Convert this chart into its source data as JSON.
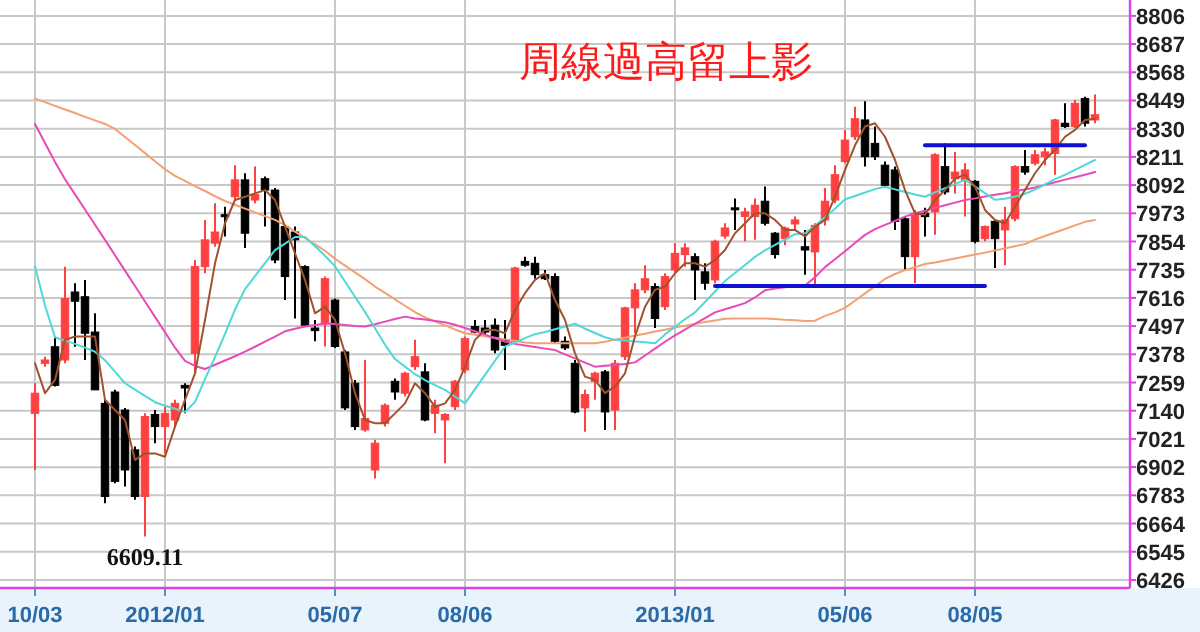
{
  "chart_data": {
    "type": "candlestick",
    "title": "周線過高留上影",
    "categories": [
      "10/03",
      null,
      null,
      null,
      null,
      null,
      null,
      null,
      null,
      null,
      null,
      null,
      null,
      "2012/01",
      null,
      null,
      null,
      null,
      null,
      null,
      null,
      null,
      null,
      null,
      null,
      null,
      null,
      null,
      null,
      null,
      "05/07",
      null,
      null,
      null,
      null,
      null,
      null,
      null,
      null,
      null,
      null,
      null,
      null,
      "08/06",
      null,
      null,
      null,
      null,
      null,
      null,
      null,
      null,
      null,
      null,
      null,
      null,
      null,
      null,
      null,
      null,
      null,
      null,
      null,
      null,
      "2013/01",
      null,
      null,
      null,
      null,
      null,
      null,
      null,
      null,
      null,
      null,
      null,
      null,
      null,
      null,
      null,
      null,
      "05/06",
      null,
      null,
      null,
      null,
      null,
      null,
      null,
      null,
      null,
      null,
      null,
      null,
      "08/05",
      null,
      null,
      null,
      null,
      null,
      null,
      null,
      null,
      null,
      null,
      null,
      null
    ],
    "ohlc": [
      [
        7129,
        7256,
        6890,
        7214
      ],
      [
        7340,
        7368,
        7326,
        7354
      ],
      [
        7410,
        7453,
        7242,
        7247
      ],
      [
        7354,
        7748,
        7340,
        7613
      ],
      [
        7641,
        7678,
        7410,
        7602
      ],
      [
        7621,
        7692,
        7354,
        7467
      ],
      [
        7472,
        7551,
        7228,
        7228
      ],
      [
        7171,
        7186,
        6750,
        6778
      ],
      [
        7219,
        7228,
        6834,
        6842
      ],
      [
        7143,
        7152,
        6820,
        6890
      ],
      [
        6975,
        6989,
        6764,
        6778
      ],
      [
        6778,
        7129,
        6609.11,
        7115
      ],
      [
        7124,
        7143,
        7003,
        7073
      ],
      [
        7073,
        7157,
        6960,
        7129
      ],
      [
        7101,
        7186,
        7073,
        7171
      ],
      [
        7247,
        7256,
        7129,
        7236
      ],
      [
        7382,
        7776,
        7298,
        7748
      ],
      [
        7748,
        7945,
        7720,
        7861
      ],
      [
        7847,
        8015,
        7832,
        7894
      ],
      [
        7967,
        8001,
        7875,
        7959
      ],
      [
        8043,
        8176,
        8029,
        8114
      ],
      [
        8114,
        8142,
        7827,
        7889
      ],
      [
        8029,
        8170,
        8015,
        8052
      ],
      [
        8119,
        8128,
        7917,
        8071
      ],
      [
        8071,
        8080,
        7762,
        7776
      ],
      [
        7917,
        7922,
        7607,
        7706
      ],
      [
        7894,
        7917,
        7529,
        7861
      ],
      [
        7748,
        7754,
        7495,
        7501
      ],
      [
        7489,
        7523,
        7433,
        7478
      ],
      [
        7509,
        7706,
        7411,
        7697
      ],
      [
        7607,
        7613,
        7405,
        7411
      ],
      [
        7388,
        7396,
        7143,
        7152
      ],
      [
        7256,
        7270,
        7059,
        7073
      ],
      [
        7059,
        7354,
        7051,
        7107
      ],
      [
        6890,
        7017,
        6854,
        7003
      ],
      [
        7087,
        7171,
        7073,
        7163
      ],
      [
        7264,
        7276,
        7186,
        7219
      ],
      [
        7214,
        7304,
        7200,
        7298
      ],
      [
        7326,
        7439,
        7312,
        7368
      ],
      [
        7304,
        7340,
        7096,
        7101
      ],
      [
        7129,
        7186,
        7045,
        7163
      ],
      [
        7101,
        7129,
        6918,
        7124
      ],
      [
        7157,
        7270,
        7143,
        7264
      ],
      [
        7312,
        7453,
        7298,
        7444
      ],
      [
        7495,
        7523,
        7467,
        7472
      ],
      [
        7489,
        7523,
        7461,
        7472
      ],
      [
        7501,
        7529,
        7382,
        7396
      ],
      [
        7439,
        7523,
        7312,
        7416
      ],
      [
        7433,
        7748,
        7425,
        7742
      ],
      [
        7770,
        7790,
        7748,
        7754
      ],
      [
        7762,
        7790,
        7697,
        7714
      ],
      [
        7714,
        7734,
        7692,
        7697
      ],
      [
        7706,
        7720,
        7425,
        7433
      ],
      [
        7433,
        7453,
        7396,
        7405
      ],
      [
        7340,
        7354,
        7129,
        7135
      ],
      [
        7152,
        7228,
        7051,
        7208
      ],
      [
        7264,
        7304,
        7186,
        7298
      ],
      [
        7304,
        7312,
        7059,
        7135
      ],
      [
        7143,
        7354,
        7059,
        7340
      ],
      [
        7368,
        7579,
        7354,
        7574
      ],
      [
        7574,
        7678,
        7467,
        7650
      ],
      [
        7650,
        7754,
        7636,
        7697
      ],
      [
        7664,
        7678,
        7489,
        7529
      ],
      [
        7579,
        7720,
        7565,
        7706
      ],
      [
        7734,
        7847,
        7720,
        7804
      ],
      [
        7799,
        7847,
        7748,
        7827
      ],
      [
        7790,
        7804,
        7607,
        7734
      ],
      [
        7726,
        7762,
        7650,
        7678
      ],
      [
        7692,
        7861,
        7678,
        7855
      ],
      [
        7877,
        7931,
        7866,
        7911
      ],
      [
        7996,
        8035,
        7903,
        7990
      ],
      [
        7959,
        7996,
        7855,
        7979
      ],
      [
        7959,
        8035,
        7861,
        8007
      ],
      [
        8024,
        8086,
        7922,
        7931
      ],
      [
        7889,
        7894,
        7782,
        7799
      ],
      [
        7866,
        7917,
        7838,
        7911
      ],
      [
        7928,
        7959,
        7903,
        7945
      ],
      [
        7832,
        7903,
        7714,
        7818
      ],
      [
        7810,
        7931,
        7669,
        7922
      ],
      [
        7945,
        8080,
        7922,
        8024
      ],
      [
        8029,
        8176,
        8015,
        8136
      ],
      [
        8192,
        8325,
        8184,
        8282
      ],
      [
        8296,
        8423,
        8282,
        8372
      ],
      [
        8367,
        8446,
        8170,
        8212
      ],
      [
        8268,
        8339,
        8198,
        8212
      ],
      [
        8176,
        8192,
        8080,
        8091
      ],
      [
        8156,
        8170,
        7903,
        7939
      ],
      [
        7950,
        7959,
        7734,
        7790
      ],
      [
        7790,
        7987,
        7678,
        7973
      ],
      [
        7973,
        7996,
        7875,
        7959
      ],
      [
        7979,
        8226,
        7883,
        8220
      ],
      [
        8170,
        8268,
        8052,
        8063
      ],
      [
        8119,
        8232,
        8057,
        8147
      ],
      [
        8114,
        8184,
        7959,
        8156
      ],
      [
        8108,
        8114,
        7847,
        7855
      ],
      [
        7866,
        7922,
        7855,
        7917
      ],
      [
        7939,
        7945,
        7742,
        7866
      ],
      [
        7903,
        8001,
        7754,
        7945
      ],
      [
        7950,
        8176,
        7939,
        8170
      ],
      [
        8170,
        8240,
        8136,
        8147
      ],
      [
        8184,
        8240,
        8176,
        8220
      ],
      [
        8212,
        8249,
        8176,
        8232
      ],
      [
        8226,
        8372,
        8136,
        8367
      ],
      [
        8353,
        8437,
        8333,
        8339
      ],
      [
        8339,
        8451,
        8333,
        8437
      ],
      [
        8457,
        8465,
        8339,
        8353
      ],
      [
        8367,
        8474,
        8353,
        8389
      ]
    ],
    "colors": [
      "#ff4040",
      "#ff4040",
      "#000000",
      "#ff4040",
      "#000000",
      "#000000",
      "#000000",
      "#000000",
      "#000000",
      "#000000",
      "#000000",
      "#ff4040",
      "#000000",
      "#ff4040",
      "#ff4040",
      "#000000",
      "#ff4040",
      "#ff4040",
      "#ff4040",
      "#000000",
      "#ff4040",
      "#000000",
      "#ff4040",
      "#000000",
      "#000000",
      "#000000",
      "#000000",
      "#000000",
      "#000000",
      "#ff4040",
      "#000000",
      "#000000",
      "#000000",
      "#ff4040",
      "#ff4040",
      "#ff4040",
      "#000000",
      "#ff4040",
      "#ff4040",
      "#000000",
      "#ff4040",
      "#ff4040",
      "#ff4040",
      "#ff4040",
      "#000000",
      "#000000",
      "#000000",
      "#000000",
      "#ff4040",
      "#000000",
      "#000000",
      "#000000",
      "#000000",
      "#000000",
      "#000000",
      "#ff4040",
      "#ff4040",
      "#000000",
      "#ff4040",
      "#ff4040",
      "#ff4040",
      "#ff4040",
      "#000000",
      "#ff4040",
      "#ff4040",
      "#ff4040",
      "#000000",
      "#000000",
      "#ff4040",
      "#ff4040",
      "#000000",
      "#ff4040",
      "#ff4040",
      "#000000",
      "#000000",
      "#ff4040",
      "#ff4040",
      "#000000",
      "#ff4040",
      "#ff4040",
      "#ff4040",
      "#ff4040",
      "#ff4040",
      "#000000",
      "#000000",
      "#000000",
      "#000000",
      "#000000",
      "#ff4040",
      "#000000",
      "#ff4040",
      "#000000",
      "#ff4040",
      "#ff4040",
      "#000000",
      "#ff4040",
      "#000000",
      "#ff4040",
      "#ff4040",
      "#000000",
      "#ff4040",
      "#ff4040",
      "#ff4040",
      "#000000",
      "#ff4040",
      "#000000",
      "#ff4040"
    ],
    "series": [
      {
        "type": "line",
        "color": "#f4a070",
        "values": [
          8457,
          8442,
          8426,
          8411,
          8396,
          8380,
          8365,
          8350,
          8329,
          8295,
          8261,
          8227,
          8193,
          8159,
          8131,
          8110,
          8088,
          8067,
          8045,
          8025,
          8009,
          7993,
          7977,
          7961,
          7945,
          7923,
          7896,
          7869,
          7842,
          7815,
          7781,
          7752,
          7724,
          7695,
          7664,
          7637,
          7610,
          7583,
          7556,
          7534,
          7517,
          7500,
          7483,
          7467,
          7461,
          7454,
          7448,
          7441,
          7435,
          7428,
          7425,
          7425,
          7425,
          7425,
          7425,
          7425,
          7425,
          7431,
          7440,
          7448,
          7457,
          7465,
          7474,
          7482,
          7491,
          7499,
          7506,
          7514,
          7521,
          7528,
          7529,
          7529,
          7529,
          7529,
          7527,
          7524,
          7522,
          7519,
          7520,
          7540,
          7555,
          7574,
          7604,
          7635,
          7665,
          7696,
          7717,
          7733,
          7746,
          7759,
          7765,
          7774,
          7782,
          7791,
          7799,
          7807,
          7816,
          7825,
          7834,
          7843,
          7862,
          7877,
          7892,
          7907,
          7922,
          7937,
          7945
        ]
      },
      {
        "type": "line",
        "color": "#e84ab8",
        "values": [
          8350,
          8270,
          8190,
          8117,
          8053,
          7989,
          7925,
          7861,
          7796,
          7731,
          7666,
          7601,
          7536,
          7471,
          7406,
          7350,
          7329,
          7316,
          7334,
          7352,
          7370,
          7389,
          7410,
          7432,
          7453,
          7475,
          7486,
          7495,
          7502,
          7508,
          7506,
          7502,
          7498,
          7495,
          7505,
          7516,
          7527,
          7537,
          7529,
          7525,
          7519,
          7513,
          7503,
          7489,
          7475,
          7461,
          7446,
          7432,
          7422,
          7415,
          7409,
          7402,
          7396,
          7378,
          7361,
          7343,
          7326,
          7330,
          7333,
          7337,
          7344,
          7373,
          7402,
          7431,
          7458,
          7482,
          7507,
          7531,
          7555,
          7568,
          7581,
          7594,
          7618,
          7648,
          7656,
          7661,
          7665,
          7668,
          7703,
          7746,
          7779,
          7813,
          7848,
          7882,
          7906,
          7924,
          7941,
          7959,
          7973,
          7984,
          7996,
          8007,
          8018,
          8029,
          8036,
          8044,
          8051,
          8058,
          8066,
          8073,
          8082,
          8093,
          8104,
          8115,
          8125,
          8136,
          8147
        ]
      },
      {
        "type": "line",
        "color": "#50d8d8",
        "values": [
          7748,
          7584,
          7450,
          7436,
          7422,
          7406,
          7389,
          7353,
          7305,
          7256,
          7229,
          7203,
          7176,
          7161,
          7148,
          7135,
          7177,
          7273,
          7366,
          7464,
          7567,
          7653,
          7708,
          7763,
          7818,
          7845,
          7873,
          7873,
          7834,
          7794,
          7749,
          7685,
          7621,
          7557,
          7488,
          7418,
          7358,
          7326,
          7294,
          7269,
          7248,
          7228,
          7200,
          7171,
          7231,
          7291,
          7351,
          7411,
          7428,
          7446,
          7463,
          7472,
          7484,
          7495,
          7507,
          7486,
          7468,
          7450,
          7439,
          7436,
          7432,
          7429,
          7425,
          7462,
          7494,
          7526,
          7555,
          7599,
          7643,
          7687,
          7721,
          7755,
          7789,
          7817,
          7840,
          7862,
          7885,
          7889,
          7920,
          7956,
          7992,
          8032,
          8046,
          8061,
          8075,
          8085,
          8074,
          8063,
          8052,
          8043,
          8061,
          8079,
          8096,
          8114,
          8086,
          8058,
          8030,
          8034,
          8044,
          8055,
          8073,
          8095,
          8117,
          8135,
          8156,
          8177,
          8198
        ]
      },
      {
        "type": "line",
        "color": "#a0522d",
        "values": [
          7340,
          7214,
          7270,
          7439,
          7453,
          7453,
          7453,
          7186,
          7143,
          7101,
          6932,
          6960,
          6960,
          6946,
          7073,
          7186,
          7298,
          7523,
          7762,
          7931,
          8029,
          8043,
          8057,
          8071,
          8029,
          7917,
          7804,
          7692,
          7551,
          7579,
          7523,
          7382,
          7214,
          7101,
          7087,
          7087,
          7129,
          7171,
          7256,
          7214,
          7157,
          7171,
          7228,
          7326,
          7439,
          7481,
          7481,
          7467,
          7565,
          7636,
          7692,
          7720,
          7607,
          7523,
          7382,
          7284,
          7270,
          7214,
          7242,
          7298,
          7453,
          7579,
          7650,
          7664,
          7720,
          7762,
          7762,
          7748,
          7776,
          7818,
          7889,
          7931,
          7973,
          7973,
          7945,
          7903,
          7903,
          7875,
          7917,
          7945,
          8043,
          8156,
          8260,
          8339,
          8353,
          8296,
          8198,
          8071,
          7973,
          7967,
          8029,
          8071,
          8119,
          8136,
          8086,
          7987,
          7945,
          7931,
          8001,
          8071,
          8142,
          8198,
          8240,
          8296,
          8325,
          8367,
          8372
        ]
      },
      {
        "type": "line",
        "color": "#1010d0",
        "values": [
          null,
          null,
          null,
          null,
          null,
          null,
          null,
          null,
          null,
          null,
          null,
          null,
          null,
          null,
          null,
          null,
          null,
          null,
          null,
          null,
          null,
          null,
          null,
          null,
          null,
          null,
          null,
          null,
          null,
          null,
          null,
          null,
          null,
          null,
          null,
          null,
          null,
          null,
          null,
          null,
          null,
          null,
          null,
          null,
          null,
          null,
          null,
          null,
          null,
          null,
          null,
          null,
          null,
          null,
          null,
          null,
          null,
          null,
          null,
          null,
          null,
          null,
          null,
          null,
          null,
          null,
          null,
          null,
          7666,
          7666,
          7666,
          7666,
          7666,
          7666,
          7666,
          7666,
          7666,
          7666,
          7666,
          7666,
          7666,
          7666,
          7666,
          7666,
          7666,
          7666,
          7666,
          7666,
          7666,
          7666,
          7666,
          7666,
          7666,
          7666,
          7666,
          7666,
          null,
          null,
          null,
          null,
          null,
          null,
          null,
          null,
          null,
          null,
          null
        ]
      },
      {
        "type": "line",
        "color": "#1010d0",
        "values": [
          null,
          null,
          null,
          null,
          null,
          null,
          null,
          null,
          null,
          null,
          null,
          null,
          null,
          null,
          null,
          null,
          null,
          null,
          null,
          null,
          null,
          null,
          null,
          null,
          null,
          null,
          null,
          null,
          null,
          null,
          null,
          null,
          null,
          null,
          null,
          null,
          null,
          null,
          null,
          null,
          null,
          null,
          null,
          null,
          null,
          null,
          null,
          null,
          null,
          null,
          null,
          null,
          null,
          null,
          null,
          null,
          null,
          null,
          null,
          null,
          null,
          null,
          null,
          null,
          null,
          null,
          null,
          null,
          null,
          null,
          null,
          null,
          null,
          null,
          null,
          null,
          null,
          null,
          null,
          null,
          null,
          null,
          null,
          null,
          null,
          null,
          null,
          null,
          null,
          8260,
          8260,
          8260,
          8260,
          8260,
          8260,
          8260,
          8260,
          8260,
          8260,
          8260,
          8260,
          8260,
          8260,
          8260,
          8260,
          8260,
          null
        ]
      }
    ],
    "annotations": [
      {
        "text": "6609.11",
        "y": 6609.11
      }
    ],
    "ylim": [
      6392,
      8873
    ],
    "yticks": [
      6426,
      6545,
      6664,
      6783,
      6902,
      7021,
      7140,
      7259,
      7378,
      7497,
      7616,
      7735,
      7854,
      7973,
      8092,
      8211,
      8330,
      8449,
      8568,
      8687,
      8806
    ],
    "grid": true
  }
}
